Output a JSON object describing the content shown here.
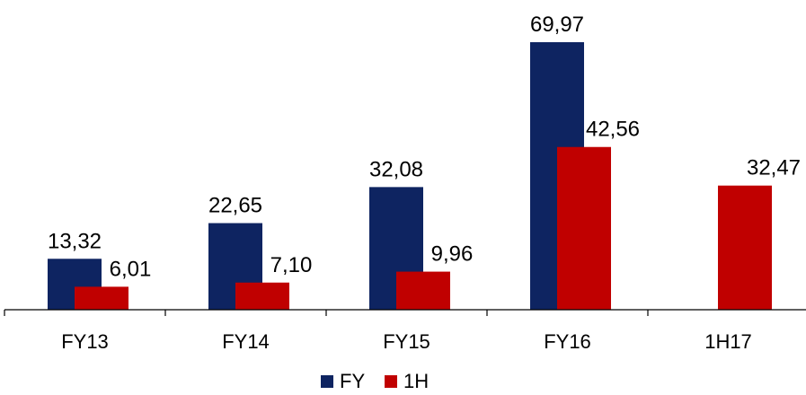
{
  "chart_data": {
    "type": "bar",
    "title": "",
    "xlabel": "",
    "ylabel": "",
    "categories": [
      "FY13",
      "FY14",
      "FY15",
      "FY16",
      "1H17"
    ],
    "series": [
      {
        "name": "FY",
        "color": "#0e2461",
        "values": [
          13.32,
          22.65,
          32.08,
          69.97,
          null
        ],
        "labels": [
          "13,32",
          "22,65",
          "32,08",
          "69,97",
          ""
        ]
      },
      {
        "name": "1H",
        "color": "#c00000",
        "values": [
          6.01,
          7.1,
          9.96,
          42.56,
          32.47
        ],
        "labels": [
          "6,01",
          "7,10",
          "9,96",
          "42,56",
          "32,47"
        ]
      }
    ],
    "ylim": [
      0,
      70
    ],
    "grid": false,
    "legend": "bottom-center"
  }
}
